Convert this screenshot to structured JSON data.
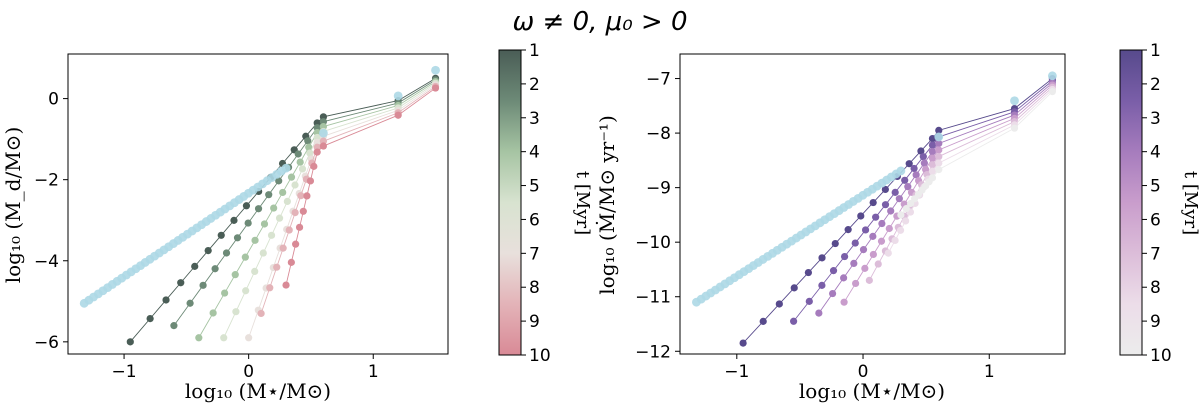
{
  "suptitle": "ω ≠ 0, μ₀ > 0",
  "colors": {
    "reference": "#ADD8E6",
    "left_cmap": [
      "#4a5d56",
      "#6d8a77",
      "#a6c4a3",
      "#d8e3d0",
      "#e8e0dc",
      "#e3b3b8",
      "#d98a96"
    ],
    "right_cmap": [
      "#574a8c",
      "#7a5ea8",
      "#a67cbd",
      "#c99dcc",
      "#dcbdd9",
      "#ecdde9",
      "#ececec"
    ]
  },
  "chart_data": [
    {
      "type": "scatter",
      "panel": "left",
      "xlabel": "log₁₀ (M⋆/M⊙)",
      "ylabel": "log₁₀ (M_d/M⊙)",
      "xlim": [
        -1.45,
        1.6
      ],
      "ylim": [
        -6.3,
        1.1
      ],
      "xticks": [
        -1,
        0,
        1
      ],
      "yticks": [
        -6,
        -4,
        -2,
        0
      ],
      "xtick_labels": [
        "−1",
        "0",
        "1"
      ],
      "ytick_labels": [
        "−6",
        "−4",
        "−2",
        "0"
      ],
      "grid": false,
      "reference_series": {
        "color": "light-blue",
        "x_start": -1.32,
        "x_end": 1.5,
        "y_start": -5.05,
        "y_end": 0.7,
        "x_cut": [
          -0.1,
          0.3,
          0.6,
          1.2,
          1.5
        ],
        "y_cut": [
          -2.4,
          -1.6,
          -1.0,
          0.2,
          0.75
        ]
      },
      "series": [
        {
          "t_myr": 1,
          "x_min": -0.95,
          "y_at_min": -6.0
        },
        {
          "t_myr": 2,
          "x_min": -0.6,
          "y_at_min": -5.6
        },
        {
          "t_myr": 3,
          "x_min": -0.4,
          "y_at_min": -5.9
        },
        {
          "t_myr": 4,
          "x_min": -0.2,
          "y_at_min": -5.9
        },
        {
          "t_myr": 5,
          "x_min": 0.0,
          "y_at_min": -5.9
        },
        {
          "t_myr": 6,
          "x_min": 0.1,
          "y_at_min": -5.3
        },
        {
          "t_myr": 7,
          "x_min": 0.3,
          "y_at_min": -4.6
        }
      ],
      "common_point": {
        "x": 1.5,
        "y": 0.5
      },
      "colorbar": {
        "label": "t [Myr]",
        "ticks": [
          "1",
          "2",
          "3",
          "4",
          "5",
          "6",
          "7",
          "8",
          "9",
          "10"
        ]
      }
    },
    {
      "type": "scatter",
      "panel": "right",
      "xlabel": "log₁₀ (M⋆/M⊙)",
      "ylabel": "log₁₀ (Ṁ/M⊙ yr⁻¹)",
      "xlim": [
        -1.45,
        1.6
      ],
      "ylim": [
        -12.05,
        -6.55
      ],
      "xticks": [
        -1,
        0,
        1
      ],
      "yticks": [
        -12,
        -11,
        -10,
        -9,
        -8,
        -7
      ],
      "xtick_labels": [
        "−1",
        "0",
        "1"
      ],
      "ytick_labels": [
        "−12",
        "−11",
        "−10",
        "−9",
        "−8",
        "−7"
      ],
      "grid": false,
      "reference_series": {
        "color": "light-blue",
        "x_start": -1.32,
        "x_end": 1.5,
        "y_start": -11.1,
        "y_end": -6.95
      },
      "series": [
        {
          "t_myr": 1,
          "x_min": -0.95,
          "y_at_min": -11.85
        },
        {
          "t_myr": 2,
          "x_min": -0.55,
          "y_at_min": -11.45
        },
        {
          "t_myr": 3,
          "x_min": -0.35,
          "y_at_min": -11.3
        },
        {
          "t_myr": 4,
          "x_min": -0.15,
          "y_at_min": -11.1
        },
        {
          "t_myr": 5,
          "x_min": 0.05,
          "y_at_min": -10.7
        },
        {
          "t_myr": 6,
          "x_min": 0.2,
          "y_at_min": -10.2
        },
        {
          "t_myr": 7,
          "x_min": 0.3,
          "y_at_min": -9.5
        }
      ],
      "common_point": {
        "x": 1.5,
        "y": -7.0
      },
      "colorbar": {
        "label": "t [Myr]",
        "ticks": [
          "1",
          "2",
          "3",
          "4",
          "5",
          "6",
          "7",
          "8",
          "9",
          "10"
        ]
      }
    }
  ]
}
